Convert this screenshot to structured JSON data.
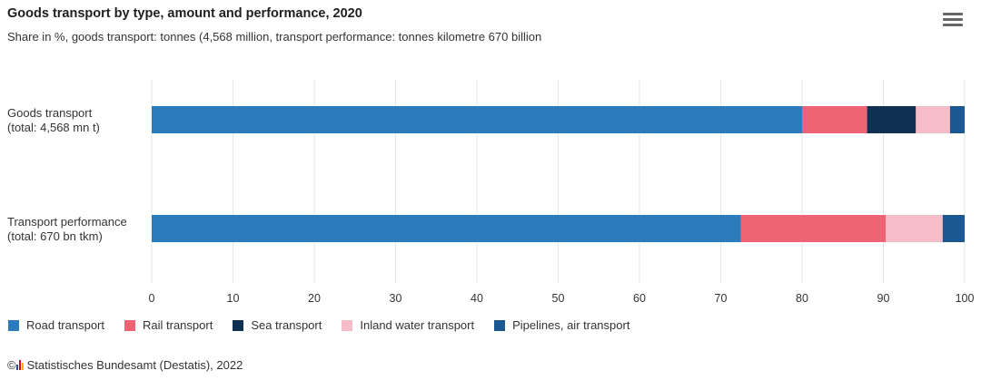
{
  "title": "Goods transport by type, amount and performance, 2020",
  "subtitle": "Share in %, goods transport: tonnes (4,568 million, transport performance: tonnes kilometre 670 billion",
  "menu_icon": "hamburger-menu-icon",
  "source": "Statistisches Bundesamt (Destatis), 2022",
  "source_prefix": "©",
  "chart_data": {
    "type": "bar",
    "orientation": "horizontal",
    "stacked": true,
    "categories": [
      [
        "Goods transport",
        "(total: 4,568 mn t)"
      ],
      [
        "Transport performance",
        "(total: 670 bn tkm)"
      ]
    ],
    "series": [
      {
        "name": "Road transport",
        "color": "#2c7bbd",
        "values": [
          80,
          72.5
        ]
      },
      {
        "name": "Rail transport",
        "color": "#ee6475",
        "values": [
          8,
          17.8
        ]
      },
      {
        "name": "Sea transport",
        "color": "#0e3152",
        "values": [
          6,
          0
        ]
      },
      {
        "name": "Inland water transport",
        "color": "#f6bcc7",
        "values": [
          4.2,
          7
        ]
      },
      {
        "name": "Pipelines, air transport",
        "color": "#1b5790",
        "values": [
          1.8,
          2.7
        ]
      }
    ],
    "xlim": [
      0,
      100
    ],
    "xticks": [
      0,
      10,
      20,
      30,
      40,
      50,
      60,
      70,
      80,
      90,
      100
    ],
    "grid": true,
    "legend_position": "bottom-left"
  }
}
